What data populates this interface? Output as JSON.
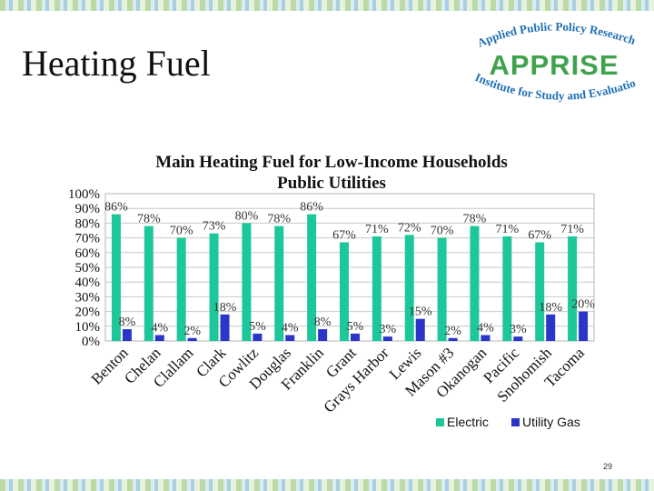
{
  "slide": {
    "title": "Heating Fuel",
    "page_number": "29"
  },
  "logo": {
    "top_text": "Applied Public Policy Research",
    "main_text": "APPRISE",
    "bottom_text": "Institute for Study and Evaluation"
  },
  "colors": {
    "electric": "#1ec79a",
    "gas": "#2b35c8",
    "logo_blue": "#1f6fb4",
    "logo_green": "#3fa34d"
  },
  "chart_data": {
    "type": "bar",
    "title": "Main Heating Fuel for Low-Income Households",
    "subtitle": "Public Utilities",
    "categories": [
      "Benton",
      "Chelan",
      "Clallam",
      "Clark",
      "Cowlitz",
      "Douglas",
      "Franklin",
      "Grant",
      "Grays Harbor",
      "Lewis",
      "Mason #3",
      "Okanogan",
      "Pacific",
      "Snohomish",
      "Tacoma"
    ],
    "series": [
      {
        "name": "Electric",
        "values": [
          86,
          78,
          70,
          73,
          80,
          78,
          86,
          67,
          71,
          72,
          70,
          78,
          71,
          67,
          71
        ]
      },
      {
        "name": "Utility Gas",
        "values": [
          8,
          4,
          2,
          18,
          5,
          4,
          8,
          5,
          3,
          15,
          2,
          4,
          3,
          18,
          20
        ]
      }
    ],
    "value_labels": {
      "electric": [
        "86%",
        "78%",
        "70%",
        "73%",
        "80%",
        "78%",
        "86%",
        "67%",
        "71%",
        "72%",
        "70%",
        "78%",
        "71%",
        "67%",
        "71%"
      ],
      "gas": [
        "8%",
        "4%",
        "2%",
        "18%",
        "5%",
        "4%",
        "8%",
        "5%",
        "3%",
        "15%",
        "2%",
        "4%",
        "3%",
        "18%",
        "20%"
      ]
    },
    "y_ticks": [
      "0%",
      "10%",
      "20%",
      "30%",
      "40%",
      "50%",
      "60%",
      "70%",
      "80%",
      "90%",
      "100%"
    ],
    "ylim": [
      0,
      100
    ],
    "grid": true,
    "legend": "bottom-right"
  }
}
